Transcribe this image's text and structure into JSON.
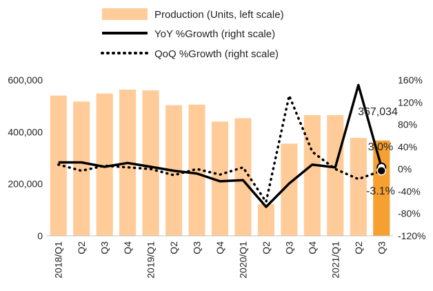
{
  "chart_data": {
    "type": "bar+line",
    "categories": [
      "2018/Q1",
      "Q2",
      "Q3",
      "Q4",
      "2019/Q1",
      "Q2",
      "Q3",
      "Q4",
      "2020/Q1",
      "Q2",
      "Q3",
      "Q4",
      "2021/Q1",
      "Q2",
      "Q3"
    ],
    "y_left": {
      "min": 0,
      "max": 600000,
      "ticks": [
        "0",
        "200,000",
        "400,000",
        "600,000"
      ],
      "tick_values": [
        0,
        200000,
        400000,
        600000
      ]
    },
    "y_right": {
      "min": -120,
      "max": 160,
      "ticks": [
        "-120%",
        "-80%",
        "-40%",
        "0%",
        "40%",
        "80%",
        "120%",
        "160%"
      ],
      "tick_values": [
        -120,
        -80,
        -40,
        0,
        40,
        80,
        120,
        160
      ]
    },
    "series": [
      {
        "name": "Production (Units, left scale)",
        "type": "bar",
        "axis": "left",
        "color": "#FFCC99",
        "highlight_color": "#F5A030",
        "values": [
          540000,
          517000,
          548000,
          563000,
          560000,
          503000,
          505000,
          440000,
          453000,
          122000,
          355000,
          465000,
          465000,
          377000,
          367034
        ]
      },
      {
        "name": "YoY %Growth (right scale)",
        "type": "line",
        "axis": "right",
        "style": "solid",
        "color": "#000000",
        "values": [
          12,
          12,
          4,
          11,
          4,
          -3,
          -8,
          -22,
          -20,
          -68,
          -26,
          8,
          3,
          151,
          3.0
        ]
      },
      {
        "name": "QoQ %Growth (right scale)",
        "type": "line",
        "axis": "right",
        "style": "dotted",
        "color": "#000000",
        "values": [
          8,
          -3,
          6,
          3,
          0,
          -11,
          0,
          -10,
          3,
          -59,
          132,
          31,
          0,
          -18,
          -3.1
        ]
      }
    ],
    "annotations": [
      "367,034",
      "3.0%",
      "-3.1%"
    ],
    "legend_position": "top"
  }
}
